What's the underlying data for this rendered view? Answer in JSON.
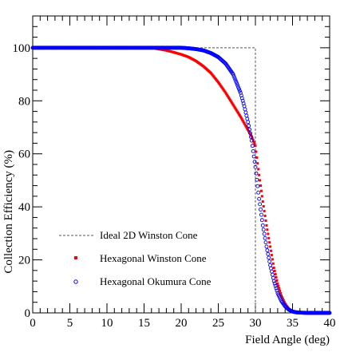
{
  "chart_data": {
    "type": "scatter",
    "xlabel": "Field Angle (deg)",
    "ylabel": "Collection Efficiency (%)",
    "xlim": [
      0,
      40
    ],
    "ylim": [
      0,
      112
    ],
    "x_ticks": [
      0,
      5,
      10,
      15,
      20,
      25,
      30,
      35,
      40
    ],
    "y_ticks": [
      0,
      20,
      40,
      60,
      80,
      100
    ],
    "x_tick_labels": [
      "0",
      "5",
      "10",
      "15",
      "20",
      "25",
      "30",
      "35",
      "40"
    ],
    "y_tick_labels": [
      "0",
      "20",
      "40",
      "60",
      "80",
      "100"
    ],
    "grid": false,
    "legend_position": "bottom-left",
    "series": [
      {
        "name": "Ideal 2D Winston Cone",
        "style": "dashed-line",
        "color": "#555555",
        "x": [
          0,
          30,
          30
        ],
        "y": [
          100,
          100,
          0
        ]
      },
      {
        "name": "Hexagonal Winston Cone",
        "style": "filled-square",
        "color": "#ff0000",
        "x": [
          0,
          2,
          4,
          6,
          8,
          10,
          12,
          14,
          16,
          17,
          18,
          19,
          20,
          21,
          22,
          23,
          24,
          25,
          26,
          27,
          28,
          29,
          29.5,
          30,
          30.5,
          31,
          31.5,
          32,
          32.5,
          33,
          33.5,
          34,
          34.5,
          35,
          35.5,
          36,
          37,
          38,
          40
        ],
        "y": [
          100,
          100,
          100,
          100,
          100,
          100,
          100,
          100,
          100,
          99.5,
          99,
          98.3,
          97.5,
          96.5,
          95,
          93,
          90.5,
          87,
          83,
          78.5,
          74,
          69,
          66.5,
          63,
          52,
          42,
          33,
          25,
          17,
          11,
          6.5,
          3.5,
          1.5,
          0.6,
          0.2,
          0.1,
          0,
          0,
          0
        ]
      },
      {
        "name": "Hexagonal Okumura Cone",
        "style": "open-circle",
        "color": "#0000ff",
        "x": [
          0,
          2,
          4,
          6,
          8,
          10,
          12,
          14,
          16,
          18,
          20,
          21,
          22,
          23,
          24,
          25,
          26,
          27,
          28,
          28.5,
          29,
          29.5,
          30,
          30.5,
          31,
          31.5,
          32,
          32.5,
          33,
          33.5,
          34,
          34.5,
          35,
          35.5,
          36,
          37,
          38,
          40
        ],
        "y": [
          100,
          100,
          100,
          100,
          100,
          100,
          100,
          100,
          100,
          100,
          100,
          99.8,
          99.5,
          99,
          98,
          96.5,
          94,
          90,
          83,
          78,
          72,
          65,
          55,
          43,
          33,
          25,
          18,
          12,
          7.5,
          4.5,
          2.5,
          1.2,
          0.5,
          0.2,
          0.1,
          0,
          0,
          0
        ]
      }
    ]
  }
}
